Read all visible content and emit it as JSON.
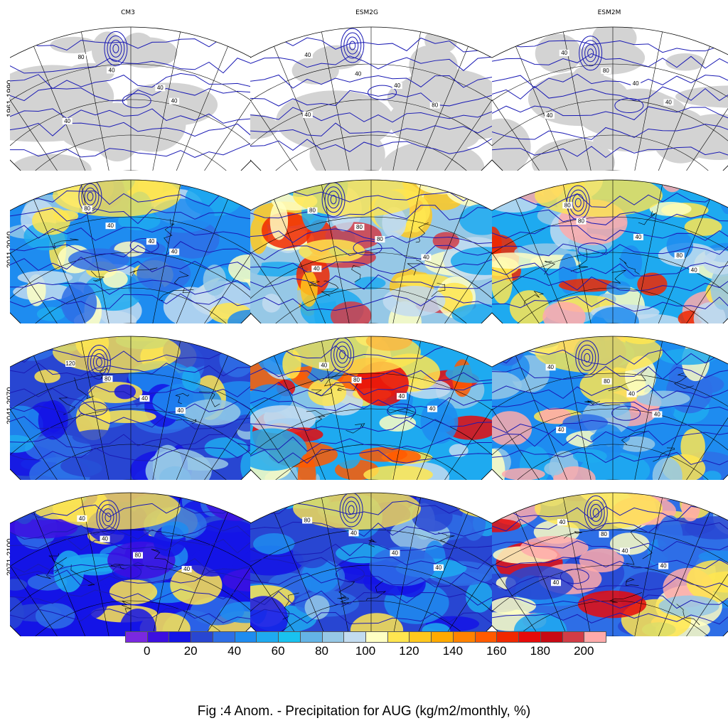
{
  "models": [
    "CM3",
    "ESM2G",
    "ESM2M"
  ],
  "periods": [
    "1961-1990",
    "2011-2040",
    "2041-2070",
    "2071-2100"
  ],
  "colorbar": {
    "colors": [
      "#7a28e0",
      "#3c0fe0",
      "#1414e6",
      "#2846d2",
      "#2e6ee6",
      "#1e8cf0",
      "#1eaaf0",
      "#19c2f0",
      "#64b4e6",
      "#96c8e6",
      "#c3dcf0",
      "#ffffc3",
      "#ffe650",
      "#ffc81e",
      "#ffaa00",
      "#ff8200",
      "#ff5a00",
      "#f02800",
      "#e60a0a",
      "#c80a14",
      "#d23c46",
      "#ffaaaa"
    ],
    "tick_labels": [
      "0",
      "20",
      "40",
      "60",
      "80",
      "100",
      "120",
      "140",
      "160",
      "180",
      "200"
    ]
  },
  "map_colors": {
    "land_grey": "#d3d3d3",
    "contour_line": "#1a1ab4",
    "coastline": "#000000",
    "graticule": "#000000"
  },
  "panels": [
    {
      "model": "CM3",
      "period": "1961-1990",
      "type": "baseline",
      "contour_labels": [
        "80",
        "40",
        "40",
        "40",
        "40"
      ]
    },
    {
      "model": "ESM2G",
      "period": "1961-1990",
      "type": "baseline",
      "contour_labels": [
        "40",
        "40",
        "40",
        "80",
        "40"
      ]
    },
    {
      "model": "ESM2M",
      "period": "1961-1990",
      "type": "baseline",
      "contour_labels": [
        "40",
        "80",
        "40",
        "40",
        "40"
      ]
    },
    {
      "model": "CM3",
      "period": "2011-2040",
      "type": "anomaly",
      "contour_labels": [
        "80",
        "40",
        "40",
        "40"
      ]
    },
    {
      "model": "ESM2G",
      "period": "2011-2040",
      "type": "anomaly",
      "contour_labels": [
        "80",
        "80",
        "80",
        "40",
        "40"
      ]
    },
    {
      "model": "ESM2M",
      "period": "2011-2040",
      "type": "anomaly",
      "contour_labels": [
        "80",
        "80",
        "40",
        "80",
        "40"
      ]
    },
    {
      "model": "CM3",
      "period": "2041-2070",
      "type": "anomaly",
      "contour_labels": [
        "120",
        "80",
        "40",
        "40"
      ]
    },
    {
      "model": "ESM2G",
      "period": "2041-2070",
      "type": "anomaly",
      "contour_labels": [
        "40",
        "80",
        "40",
        "40"
      ]
    },
    {
      "model": "ESM2M",
      "period": "2041-2070",
      "type": "anomaly",
      "contour_labels": [
        "40",
        "80",
        "40",
        "40",
        "40"
      ]
    },
    {
      "model": "CM3",
      "period": "2071-2100",
      "type": "anomaly",
      "contour_labels": [
        "40",
        "40",
        "80",
        "40"
      ]
    },
    {
      "model": "ESM2G",
      "period": "2071-2100",
      "type": "anomaly",
      "contour_labels": [
        "80",
        "40",
        "40",
        "40"
      ]
    },
    {
      "model": "ESM2M",
      "period": "2071-2100",
      "type": "anomaly",
      "contour_labels": [
        "40",
        "80",
        "40",
        "40",
        "40"
      ]
    }
  ],
  "caption": "Fig :4  Anom.  - Precipitation for AUG (kg/m2/monthly, %)"
}
